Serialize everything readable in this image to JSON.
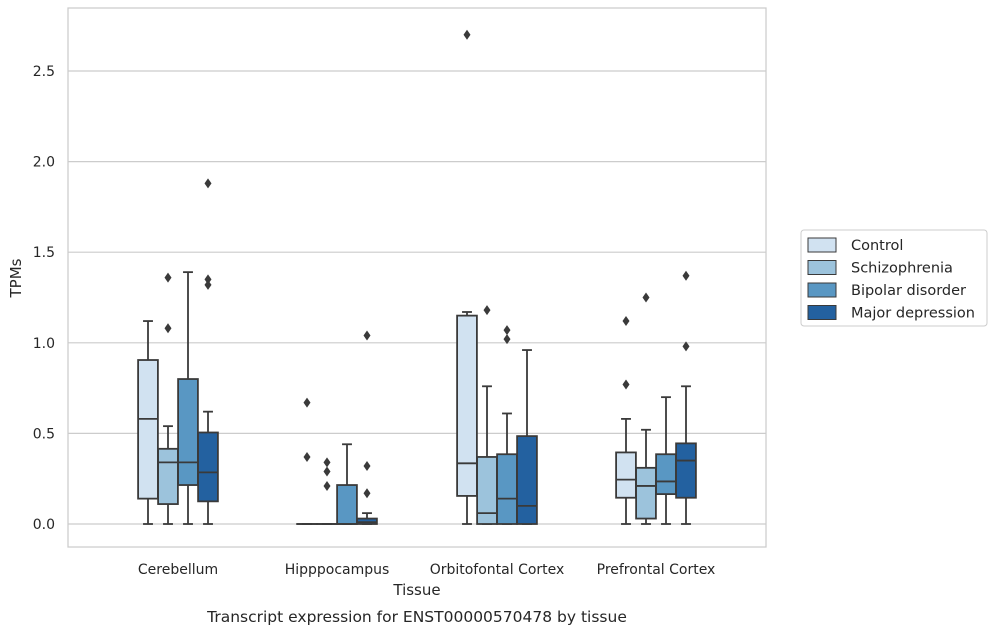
{
  "chart_data": {
    "type": "box",
    "xlabel": "Tissue",
    "ylabel": "TPMs",
    "caption": "Transcript expression for ENST00000570478 by tissue",
    "ylim": [
      -0.13,
      2.85
    ],
    "yticks": [
      "0.0",
      "0.5",
      "1.0",
      "1.5",
      "2.0",
      "2.5"
    ],
    "grid": "horizontal",
    "legend_position": "right",
    "categories": [
      "Cerebellum",
      "Hipppocampus",
      "Orbitofontal Cortex",
      "Prefrontal Cortex"
    ],
    "series": [
      {
        "name": "Control",
        "color": "#d1e2f1",
        "boxes": [
          {
            "whislo": 0,
            "q1": 0.14,
            "med": 0.58,
            "q3": 0.905,
            "whishi": 1.12,
            "fliers": []
          },
          {
            "whislo": 0,
            "q1": 0,
            "med": 0,
            "q3": 0,
            "whishi": 0,
            "fliers": [
              0.67,
              0.37
            ]
          },
          {
            "whislo": 0,
            "q1": 0.155,
            "med": 0.335,
            "q3": 1.15,
            "whishi": 1.17,
            "fliers": [
              2.7
            ]
          },
          {
            "whislo": 0,
            "q1": 0.145,
            "med": 0.245,
            "q3": 0.395,
            "whishi": 0.58,
            "fliers": [
              1.12,
              0.77
            ]
          }
        ]
      },
      {
        "name": "Schizophrenia",
        "color": "#9cc3dc",
        "boxes": [
          {
            "whislo": 0,
            "q1": 0.11,
            "med": 0.34,
            "q3": 0.415,
            "whishi": 0.54,
            "fliers": [
              1.36,
              1.08
            ]
          },
          {
            "whislo": 0,
            "q1": 0,
            "med": 0,
            "q3": 0,
            "whishi": 0,
            "fliers": [
              0.34,
              0.29,
              0.21
            ]
          },
          {
            "whislo": 0,
            "q1": 0,
            "med": 0.06,
            "q3": 0.37,
            "whishi": 0.76,
            "fliers": [
              1.18
            ]
          },
          {
            "whislo": 0,
            "q1": 0.03,
            "med": 0.21,
            "q3": 0.31,
            "whishi": 0.52,
            "fliers": [
              1.25
            ]
          }
        ]
      },
      {
        "name": "Bipolar disorder",
        "color": "#5997c3",
        "boxes": [
          {
            "whislo": 0,
            "q1": 0.215,
            "med": 0.34,
            "q3": 0.8,
            "whishi": 1.39,
            "fliers": []
          },
          {
            "whislo": 0,
            "q1": 0,
            "med": 0,
            "q3": 0.215,
            "whishi": 0.44,
            "fliers": []
          },
          {
            "whislo": 0,
            "q1": 0,
            "med": 0.14,
            "q3": 0.385,
            "whishi": 0.61,
            "fliers": [
              1.07,
              1.02
            ]
          },
          {
            "whislo": 0,
            "q1": 0.165,
            "med": 0.235,
            "q3": 0.385,
            "whishi": 0.7,
            "fliers": []
          }
        ]
      },
      {
        "name": "Major depression",
        "color": "#2361a0",
        "boxes": [
          {
            "whislo": 0,
            "q1": 0.125,
            "med": 0.285,
            "q3": 0.505,
            "whishi": 0.62,
            "fliers": [
              1.88,
              1.35,
              1.32
            ]
          },
          {
            "whislo": 0,
            "q1": 0,
            "med": 0.01,
            "q3": 0.03,
            "whishi": 0.06,
            "fliers": [
              1.04,
              0.32,
              0.17
            ]
          },
          {
            "whislo": 0,
            "q1": 0,
            "med": 0.1,
            "q3": 0.485,
            "whishi": 0.96,
            "fliers": []
          },
          {
            "whislo": 0,
            "q1": 0.145,
            "med": 0.35,
            "q3": 0.445,
            "whishi": 0.76,
            "fliers": [
              1.37,
              0.98
            ]
          }
        ]
      }
    ]
  }
}
